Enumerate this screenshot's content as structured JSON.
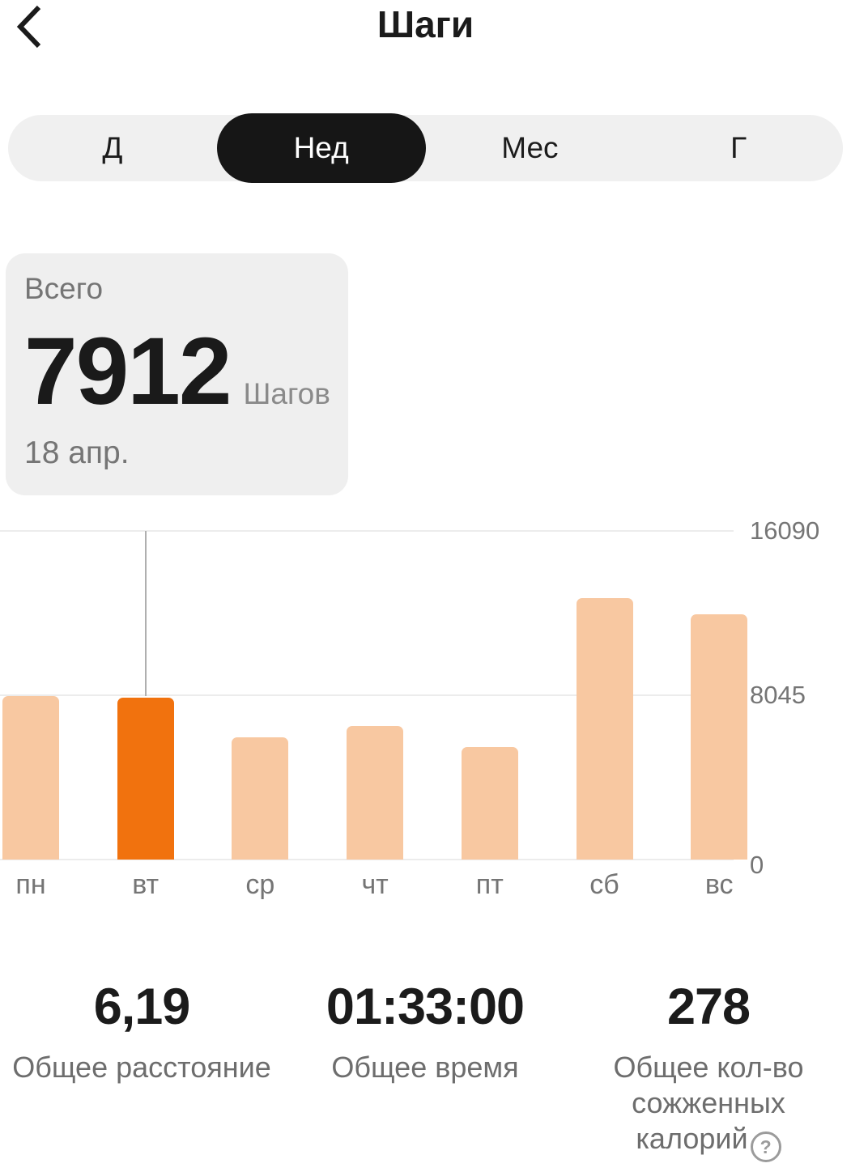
{
  "header": {
    "title": "Шаги"
  },
  "tabs": {
    "items": [
      {
        "label": "Д",
        "selected": false
      },
      {
        "label": "Нед",
        "selected": true
      },
      {
        "label": "Мес",
        "selected": false
      },
      {
        "label": "Г",
        "selected": false
      }
    ]
  },
  "summary_card": {
    "label": "Всего",
    "value": "7912",
    "unit": "Шагов",
    "date": "18 апр."
  },
  "chart_data": {
    "type": "bar",
    "categories": [
      "пн",
      "вт",
      "ср",
      "чт",
      "пт",
      "сб",
      "вс"
    ],
    "values": [
      8000,
      7912,
      6000,
      6550,
      5500,
      12800,
      12000
    ],
    "selected_index": 1,
    "selected_value": 7912,
    "ylabel": "",
    "xlabel": "",
    "ylim": [
      0,
      16090
    ],
    "yticks": [
      16090,
      8045,
      0
    ],
    "grid": true,
    "legend": false,
    "bar_color": "#F8C8A1",
    "selected_bar_color": "#F1720E",
    "gridline_color": "#ECECEC",
    "selection_line_color": "#AFAFAF"
  },
  "stats": {
    "items": [
      {
        "value": "6,19",
        "label": "Общее расстояние"
      },
      {
        "value": "01:33:00",
        "label": "Общее время"
      },
      {
        "value": "278",
        "label": "Общее кол-во сожженных калорий",
        "info_icon_glyph": "?"
      }
    ]
  },
  "colors": {
    "accent_orange": "#F1720E",
    "bar_light": "#F8C8A1",
    "tab_bar_bg": "#F0F0F0",
    "tab_selected_bg": "#161616",
    "card_bg": "#EFEFEF",
    "text_primary": "#1B1B1B",
    "text_secondary": "#757575"
  }
}
